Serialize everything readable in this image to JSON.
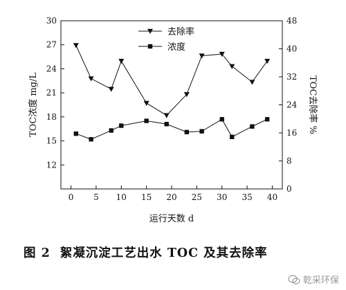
{
  "chart_data": {
    "type": "line",
    "x": [
      1,
      4,
      8,
      10,
      15,
      19,
      23,
      26,
      30,
      32,
      36,
      39
    ],
    "xlabel": "运行天数 d",
    "xlim": [
      -2,
      42
    ],
    "xticks": [
      0,
      5,
      10,
      15,
      20,
      25,
      30,
      35,
      40
    ],
    "left_axis": {
      "label": "TOC浓度 mg/L",
      "ylim": [
        9,
        30
      ],
      "ticks": [
        12,
        15,
        18,
        21,
        24,
        27,
        30
      ]
    },
    "right_axis": {
      "label": "TOC去除率 %",
      "ylim": [
        0,
        48
      ],
      "ticks": [
        0,
        8,
        16,
        24,
        32,
        40,
        48
      ]
    },
    "series": [
      {
        "name": "去除率",
        "axis": "right",
        "marker": "triangle-down",
        "values": [
          41,
          31.5,
          28.5,
          36.5,
          24.5,
          21,
          27,
          38,
          38.5,
          35,
          30.5,
          36.5
        ]
      },
      {
        "name": "浓度",
        "axis": "left",
        "marker": "square",
        "values": [
          15.9,
          15.2,
          16.3,
          16.9,
          17.5,
          17.1,
          16.1,
          16.2,
          17.7,
          15.5,
          16.8,
          17.7
        ]
      }
    ],
    "legend_position": "top-center",
    "grid": false
  },
  "caption": {
    "figure_no": "图 2",
    "title": "絮凝沉淀工艺出水 TOC 及其去除率"
  },
  "watermark": {
    "text": "乾采环保"
  }
}
